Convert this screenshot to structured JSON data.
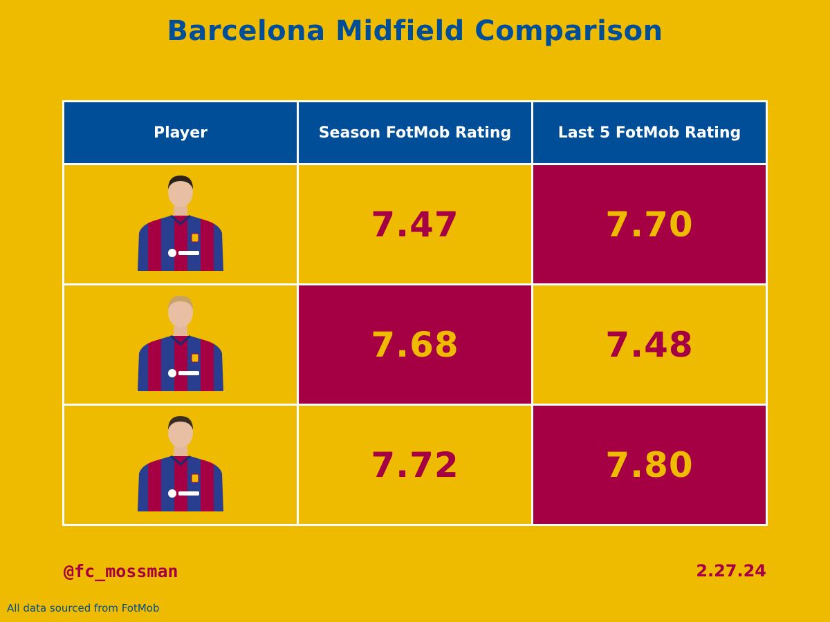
{
  "colors": {
    "background": "#EEBB00",
    "header_bg": "#004D98",
    "header_text": "#FFFFFF",
    "title": "#004D98",
    "highlight_bg": "#A50044",
    "highlight_text": "#EEBB00",
    "normal_text": "#A50044",
    "footer_text": "#A50044",
    "source_text": "#004D98"
  },
  "title": "Barcelona Midfield Comparison",
  "chart_data": {
    "type": "table",
    "columns": [
      "Player",
      "Season FotMob Rating",
      "Last 5 FotMob Rating"
    ],
    "rows": [
      {
        "player_icon": "player-photo-icon",
        "season": "7.47",
        "last5": "7.70",
        "season_highlight": false,
        "last5_highlight": true
      },
      {
        "player_icon": "player-photo-icon",
        "season": "7.68",
        "last5": "7.48",
        "season_highlight": true,
        "last5_highlight": false
      },
      {
        "player_icon": "player-photo-icon",
        "season": "7.72",
        "last5": "7.80",
        "season_highlight": false,
        "last5_highlight": true
      }
    ]
  },
  "footer": {
    "handle": "@fc_mossman",
    "date": "2.27.24",
    "source": "All data sourced from FotMob"
  }
}
